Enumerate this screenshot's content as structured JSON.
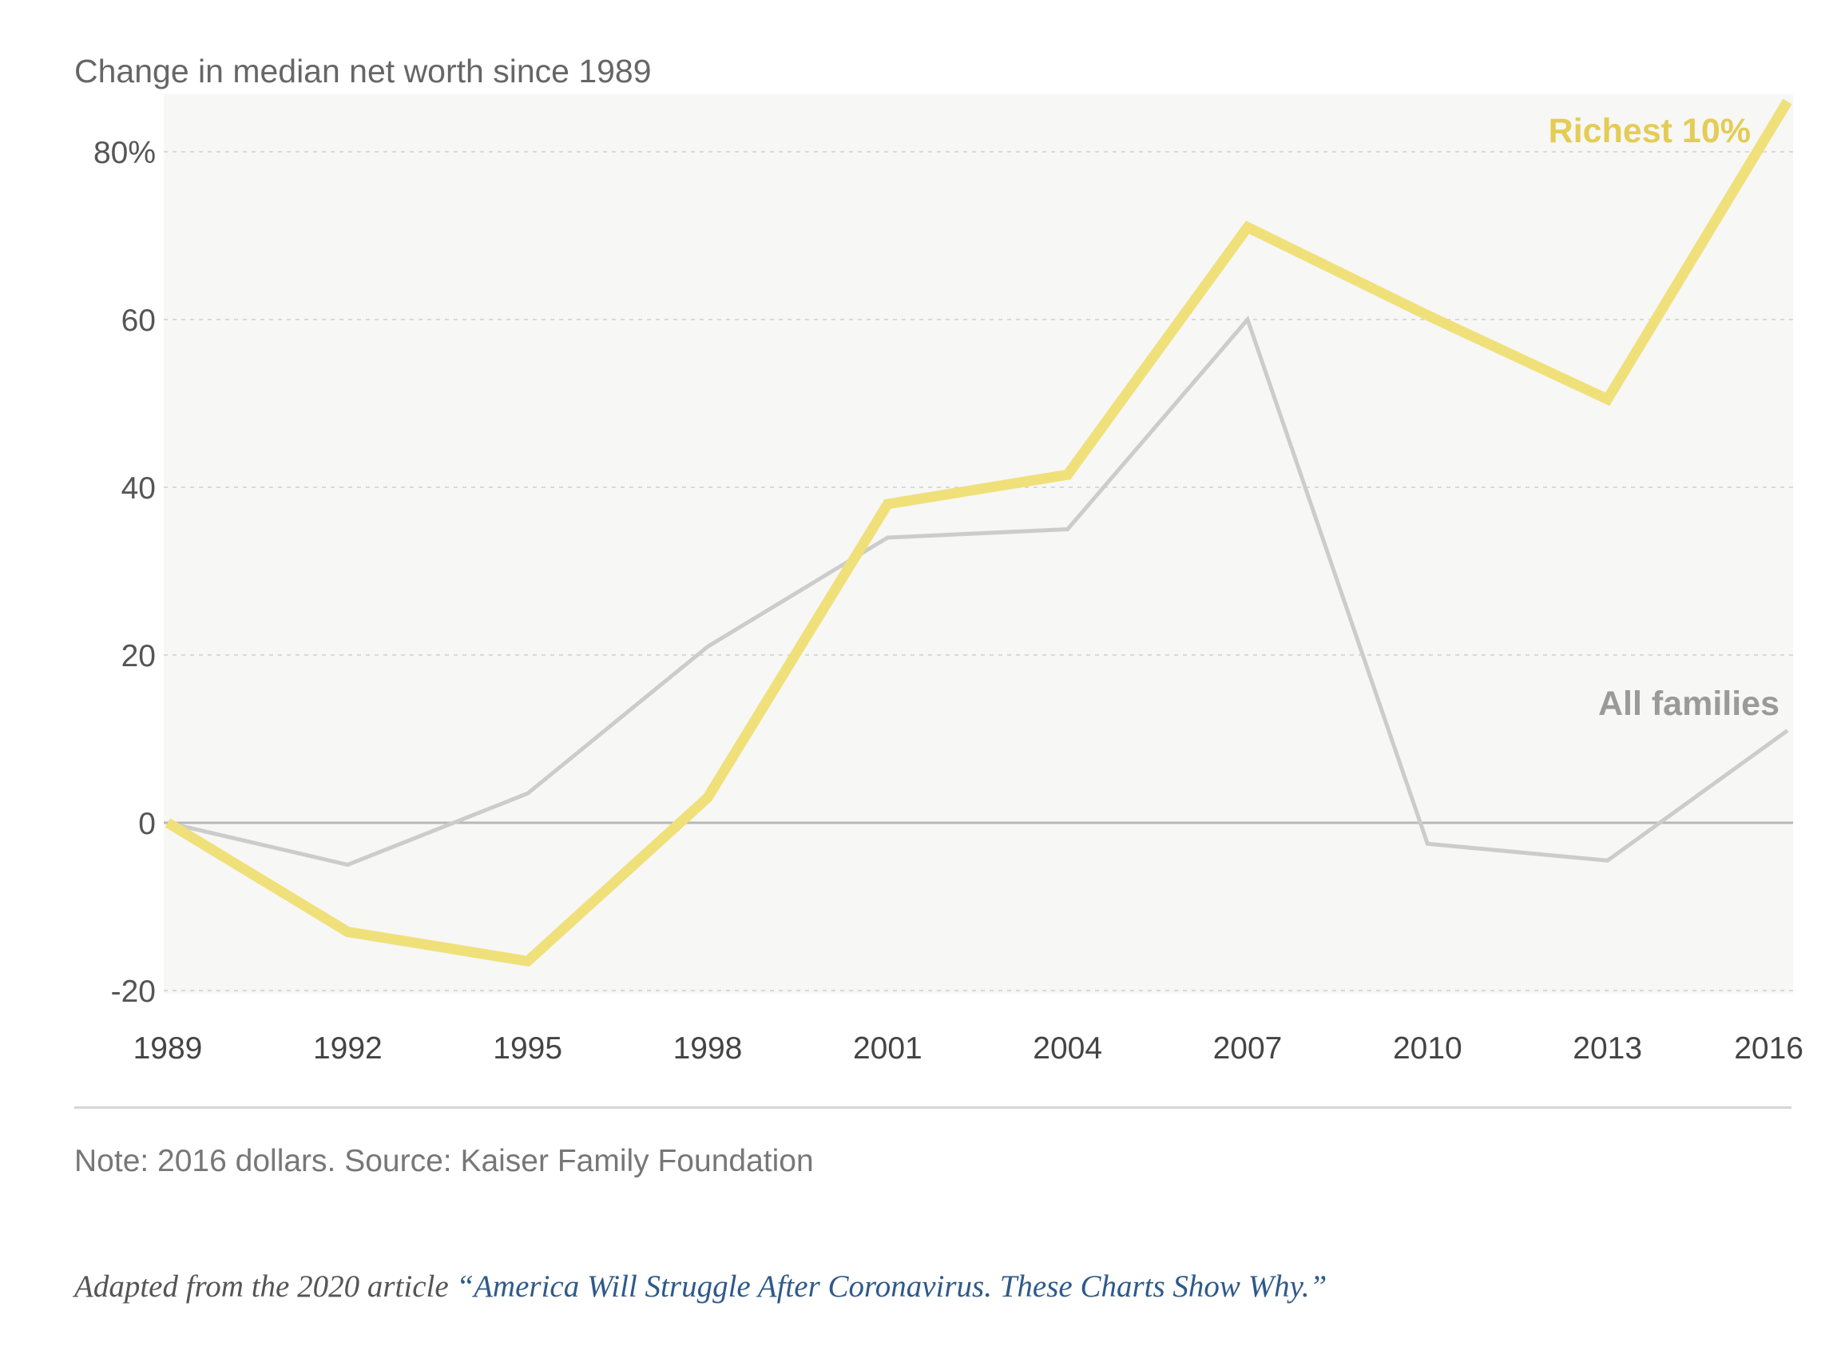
{
  "chart_data": {
    "type": "line",
    "title": "Change in median net worth since 1989",
    "x": [
      1989,
      1992,
      1995,
      1998,
      2001,
      2004,
      2007,
      2010,
      2013,
      2016
    ],
    "y_ticks": [
      80,
      60,
      40,
      20,
      0,
      -20
    ],
    "y_tick_labels": [
      "80%",
      "60",
      "40",
      "20",
      "0",
      "-20"
    ],
    "ylim": [
      -20,
      87
    ],
    "xlim": [
      1989,
      2016
    ],
    "grid": true,
    "series": [
      {
        "name": "All families",
        "color": "#cccccc",
        "values": [
          0,
          -5,
          3.5,
          21,
          34,
          35,
          60,
          -2.5,
          -4.5,
          11
        ]
      },
      {
        "name": "Richest 10%",
        "color": "#f0e07a",
        "label_color": "#e4cc55",
        "values": [
          0,
          -13,
          -16.5,
          3,
          38,
          41.5,
          71,
          60.5,
          50.5,
          86
        ]
      }
    ]
  },
  "footer": {
    "note": "Note: 2016 dollars. Source: Kaiser Family Foundation",
    "credit_prefix": "Adapted from the 2020 article ",
    "credit_link": "“America Will Struggle After Coronavirus. These Charts Show Why.”"
  }
}
